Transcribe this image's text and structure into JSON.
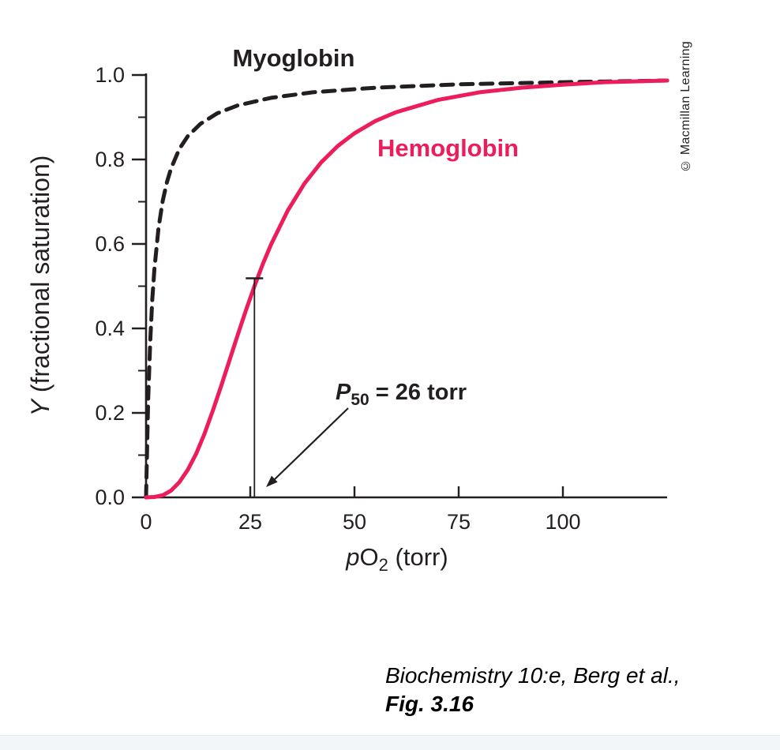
{
  "figure": {
    "credit": "© Macmillan Learning",
    "caption_line1": "Biochemistry 10:e, Berg et al.,",
    "caption_line2": "Fig. 3.16"
  },
  "chart_data": {
    "type": "line",
    "title": "",
    "xlabel": "pO2 (torr)",
    "ylabel": "Y (fractional saturation)",
    "xlabel_parts": {
      "italic": "p",
      "main": "O",
      "sub": "2",
      "rest": " (torr)"
    },
    "ylabel_parts": {
      "italic": "Y",
      "rest": " (fractional saturation)"
    },
    "xlim": [
      0,
      125
    ],
    "ylim": [
      0,
      1.0
    ],
    "grid": false,
    "axis_color": "#231F20",
    "x_tick_values": [
      0,
      25,
      50,
      75,
      100
    ],
    "x_tick_labels": [
      "0",
      "25",
      "50",
      "75",
      "100"
    ],
    "y_tick_values": [
      0,
      0.2,
      0.4,
      0.6,
      0.8,
      1.0
    ],
    "y_tick_labels": [
      "0.0",
      "0.2",
      "0.4",
      "0.6",
      "0.8",
      "1.0"
    ],
    "y_minor_ticks": [
      0.1,
      0.3,
      0.5,
      0.7,
      0.9
    ],
    "annotation": {
      "text": "P50 = 26 torr",
      "text_italic": "P",
      "text_sub": "50",
      "text_rest": " = 26 torr",
      "x": 26,
      "y": 0.5
    },
    "series": [
      {
        "name": "Myoglobin",
        "color": "#231F20",
        "style": "dashed",
        "x": [
          0,
          0.5,
          1,
          1.5,
          2,
          3,
          4,
          5,
          6,
          8,
          10,
          13,
          17,
          22,
          30,
          40,
          55,
          75,
          100,
          125
        ],
        "y": [
          0,
          0.227,
          0.37,
          0.469,
          0.541,
          0.638,
          0.702,
          0.746,
          0.779,
          0.825,
          0.855,
          0.884,
          0.909,
          0.928,
          0.946,
          0.959,
          0.97,
          0.978,
          0.983,
          0.987
        ]
      },
      {
        "name": "Hemoglobin",
        "color": "#ED1C5B",
        "style": "solid",
        "x": [
          0,
          2,
          4,
          6,
          8,
          10,
          12,
          14,
          16,
          18,
          20,
          22,
          24,
          26,
          28,
          30,
          34,
          38,
          42,
          46,
          50,
          55,
          60,
          70,
          80,
          90,
          100,
          110,
          125
        ],
        "y": [
          0,
          0.001,
          0.005,
          0.016,
          0.036,
          0.065,
          0.103,
          0.15,
          0.205,
          0.263,
          0.324,
          0.385,
          0.444,
          0.5,
          0.552,
          0.599,
          0.679,
          0.743,
          0.793,
          0.832,
          0.862,
          0.891,
          0.912,
          0.941,
          0.959,
          0.97,
          0.977,
          0.983,
          0.987
        ]
      }
    ]
  }
}
